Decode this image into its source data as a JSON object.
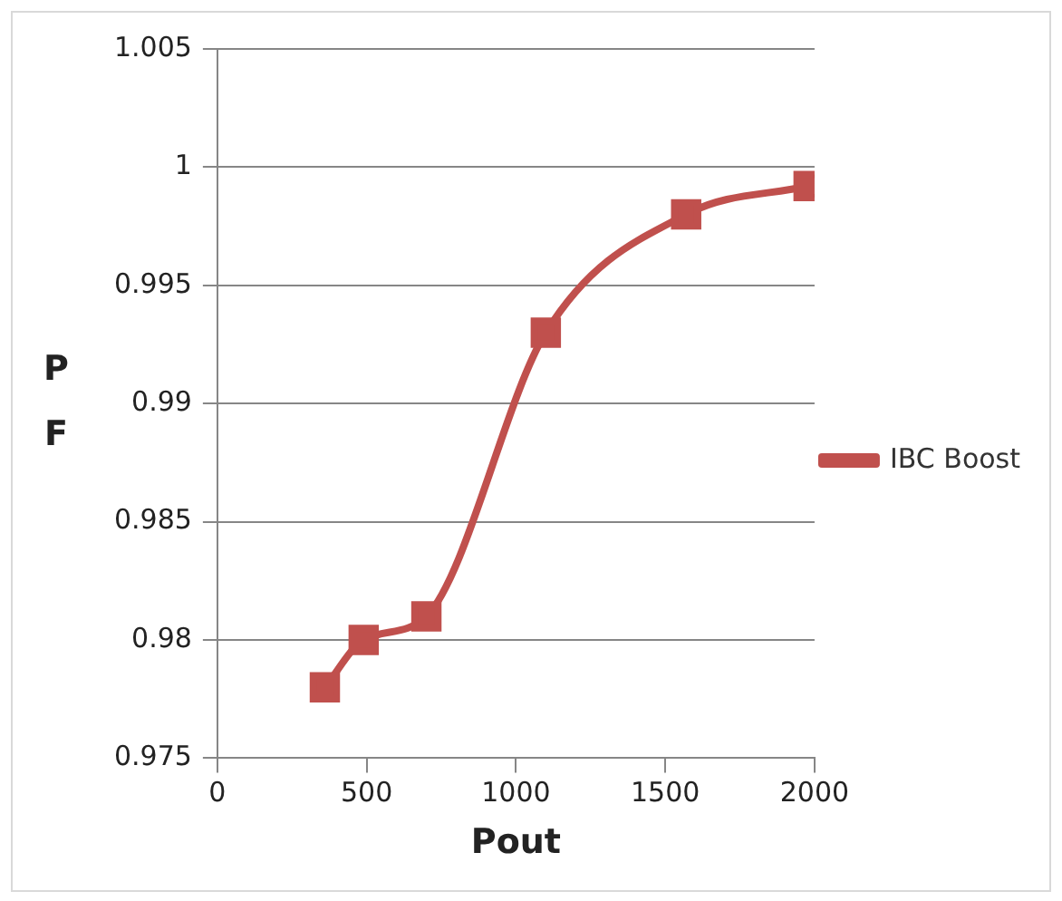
{
  "chart_data": {
    "type": "line",
    "xlabel": "Pout",
    "ylabel": "PF",
    "x": [
      360,
      490,
      700,
      1100,
      1570,
      1980
    ],
    "series": [
      {
        "name": "IBC Boost",
        "color": "#c0504d",
        "values": [
          0.978,
          0.98,
          0.981,
          0.993,
          0.998,
          0.9992
        ]
      }
    ],
    "xlim": [
      0,
      2000
    ],
    "xticks": [
      0,
      500,
      1000,
      1500,
      2000
    ],
    "ylim": [
      0.975,
      1.005
    ],
    "yticks": [
      0.975,
      0.98,
      0.985,
      0.99,
      0.995,
      1,
      1.005
    ],
    "grid": "y",
    "legend": "right",
    "marker": "square",
    "line_style": "solid"
  }
}
